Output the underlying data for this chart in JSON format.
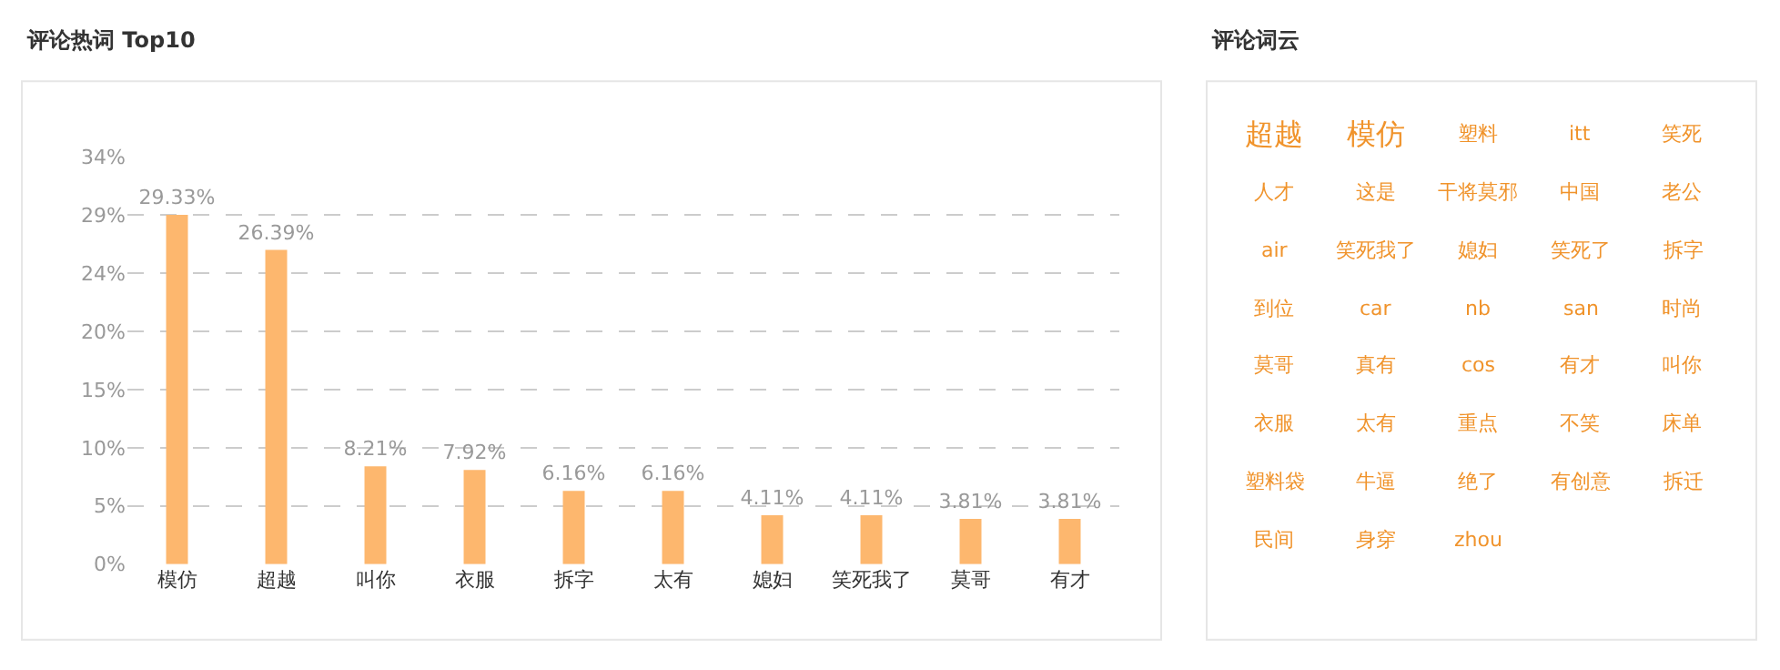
{
  "chart_data": [
    {
      "type": "bar",
      "title": "评论热词 Top10",
      "categories": [
        "模仿",
        "超越",
        "叫你",
        "衣服",
        "拆字",
        "太有",
        "媳妇",
        "笑死我了",
        "莫哥",
        "有才"
      ],
      "values": [
        29.33,
        26.39,
        8.21,
        7.92,
        6.16,
        6.16,
        4.11,
        4.11,
        3.81,
        3.81
      ],
      "value_labels": [
        "29.33%",
        "26.39%",
        "8.21%",
        "7.92%",
        "6.16%",
        "6.16%",
        "4.11%",
        "4.11%",
        "3.81%",
        "3.81%"
      ],
      "color": "#fdb76e",
      "ylim": [
        0,
        34.22
      ],
      "yticks": [
        {
          "value": 0,
          "label": "0%"
        },
        {
          "value": 4.89,
          "label": "5%"
        },
        {
          "value": 9.78,
          "label": "10%"
        },
        {
          "value": 14.67,
          "label": "15%"
        },
        {
          "value": 19.55,
          "label": "20%"
        },
        {
          "value": 24.44,
          "label": "24%"
        },
        {
          "value": 29.33,
          "label": "29%"
        },
        {
          "value": 34.22,
          "label": "34%"
        }
      ],
      "grid": "y"
    },
    {
      "type": "other",
      "title": "评论词云",
      "color": "#f0932b",
      "annotations": [
        "超越",
        "模仿",
        "塑料",
        "itt",
        "笑死",
        "人才",
        "这是",
        "干将莫邪",
        "中国",
        "老公",
        "air",
        "笑死我了",
        "媳妇",
        "笑死了",
        "拆字",
        "到位",
        "car",
        "nb",
        "san",
        "时尚",
        "莫哥",
        "真有",
        "cos",
        "有才",
        "叫你",
        "衣服",
        "太有",
        "重点",
        "不笑",
        "床单",
        "塑料袋",
        "牛逼",
        "绝了",
        "有创意",
        "拆迁",
        "民间",
        "身穿",
        "zhou"
      ]
    }
  ]
}
